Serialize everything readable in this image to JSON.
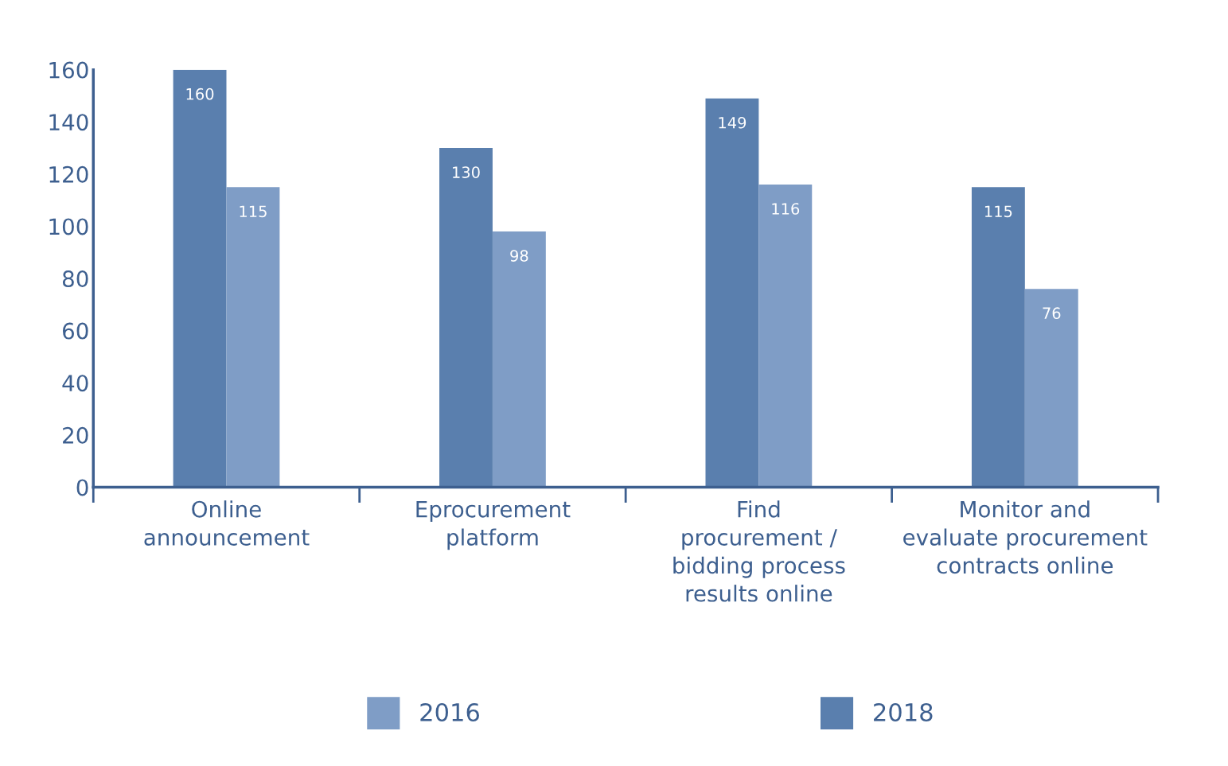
{
  "chart_data": {
    "type": "bar",
    "categories": [
      "Online\nannouncement",
      "Eprocurement\nplatform",
      "Find\nprocurement /\nbidding process\nresults online",
      "Monitor and\nevaluate procurement\ncontracts online"
    ],
    "series": [
      {
        "name": "2018",
        "color": "#5a7fae",
        "values": [
          160,
          130,
          149,
          115
        ]
      },
      {
        "name": "2016",
        "color": "#7f9dc6",
        "values": [
          115,
          98,
          116,
          76
        ]
      }
    ],
    "ylim": [
      0,
      160
    ],
    "yticks": [
      0,
      20,
      40,
      60,
      80,
      100,
      120,
      140,
      160
    ],
    "data_labels": true,
    "grid": false,
    "legend": "bottom"
  }
}
